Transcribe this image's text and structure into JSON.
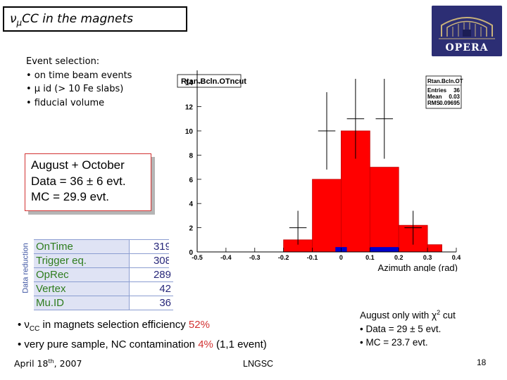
{
  "title": {
    "nu": "ν",
    "sub": "μ",
    "text": "CC in the magnets"
  },
  "logo": {
    "text": "OPERA"
  },
  "selection": {
    "heading": "Event selection:",
    "items": [
      "• on time beam events",
      "• μ id (> 10 Fe slabs)",
      "• fiducial volume"
    ]
  },
  "summary_box": {
    "lines": [
      "August + October",
      "Data = 36 ± 6 evt.",
      "MC = 29.9 evt."
    ]
  },
  "reduction": {
    "label": "Data reduction",
    "rows": [
      {
        "name": "OnTime",
        "value": "319"
      },
      {
        "name": "Trigger eq.",
        "value": "308"
      },
      {
        "name": "OpRec",
        "value": "289"
      },
      {
        "name": "Vertex",
        "value": "42"
      },
      {
        "name": "Mu.ID",
        "value": "36"
      }
    ]
  },
  "chart_data": {
    "type": "bar",
    "title": "Rtan.Bcln.OTncut",
    "xlabel": "Azimuth angle (rad)",
    "ylabel": "",
    "xlim": [
      -0.5,
      0.4
    ],
    "ylim": [
      0,
      15
    ],
    "xticks": [
      "-0.5",
      "-0.4",
      "-0.3",
      "-0.2",
      "-0.1",
      "0",
      "0.1",
      "0.2",
      "0.3",
      "0.4"
    ],
    "yticks": [
      "0",
      "2",
      "4",
      "6",
      "8",
      "10",
      "12",
      "14"
    ],
    "stats": {
      "name": "Rtan.Bcln.OTncut",
      "rows": [
        {
          "label": "Entries",
          "value": "36"
        },
        {
          "label": "Mean",
          "value": "0.03"
        },
        {
          "label": "RMS",
          "value": "0.09695"
        }
      ]
    },
    "mc_bins": [
      {
        "x0": -0.2,
        "x1": -0.1,
        "value": 1
      },
      {
        "x0": -0.1,
        "x1": 0.0,
        "value": 6
      },
      {
        "x0": 0.0,
        "x1": 0.1,
        "value": 10
      },
      {
        "x0": 0.1,
        "x1": 0.2,
        "value": 7
      },
      {
        "x0": 0.2,
        "x1": 0.3,
        "value": 2.2
      },
      {
        "x0": 0.3,
        "x1": 0.35,
        "value": 0.6
      }
    ],
    "nc_bins": [
      {
        "x0": -0.02,
        "x1": 0.02,
        "value": 0.4
      },
      {
        "x0": 0.1,
        "x1": 0.2,
        "value": 0.4
      }
    ],
    "data_points": [
      {
        "x": -0.15,
        "y": 2,
        "err": 1.4
      },
      {
        "x": -0.05,
        "y": 10,
        "err": 3.2
      },
      {
        "x": 0.05,
        "y": 11,
        "err": 3.3
      },
      {
        "x": 0.15,
        "y": 11,
        "err": 3.3
      },
      {
        "x": 0.25,
        "y": 2,
        "err": 1.4
      }
    ],
    "colors": {
      "mc": "#ff0000",
      "nc": "#0000cc",
      "frame": "#000000"
    }
  },
  "bottom": {
    "line1_a": "• ν",
    "line1_sub": "CC",
    "line1_b": " in magnets selection efficiency ",
    "line1_pct": "52%",
    "line2_a": "• very pure sample, NC contamination ",
    "line2_pct": "4%",
    "line2_b": " (1,1 event)"
  },
  "aug_only": {
    "line1_a": "August only with χ",
    "line1_sup": "2",
    "line1_b": " cut",
    "line2": "• Data = 29 ± 5 evt.",
    "line3": "• MC = 23.7 evt."
  },
  "footer": {
    "date_a": "April 18",
    "date_sup": "th",
    "date_b": ", 2007",
    "lab": "LNGSC",
    "page": "18"
  }
}
